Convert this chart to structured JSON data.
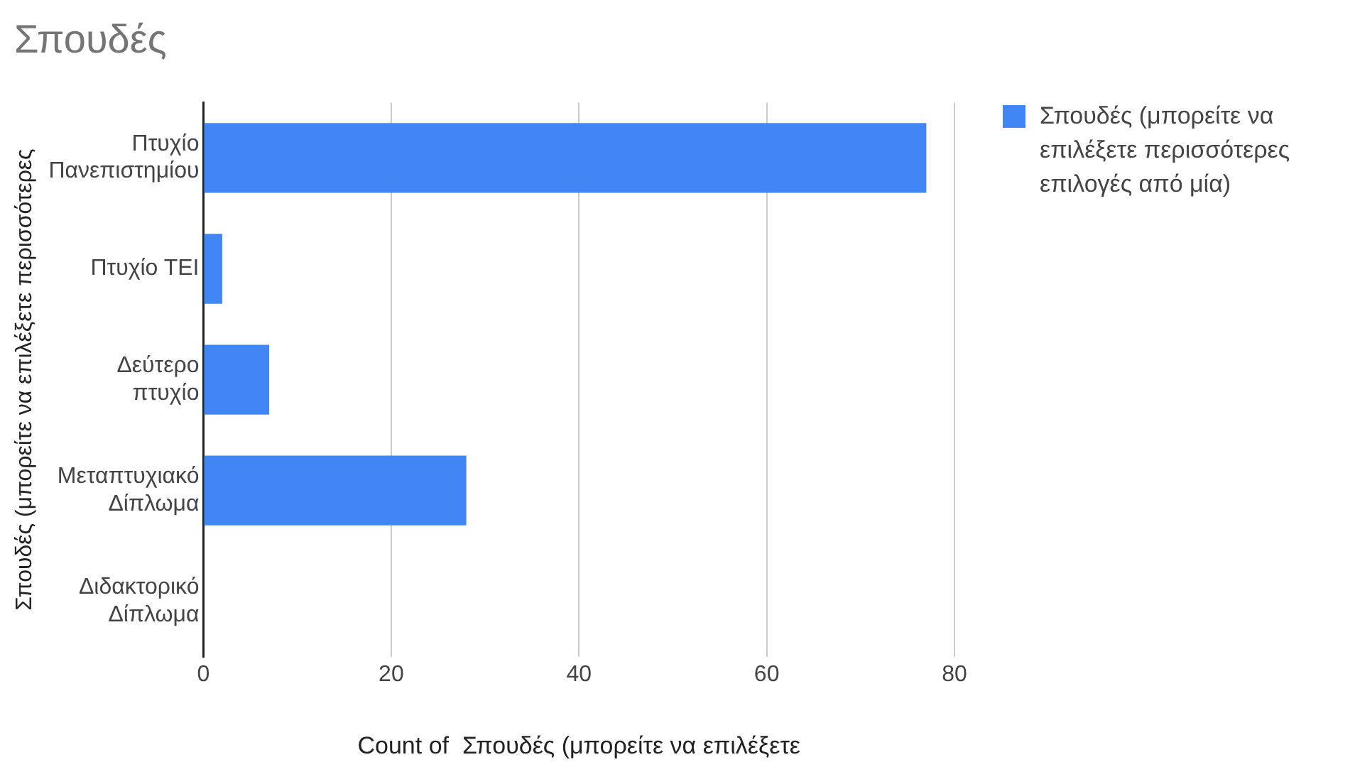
{
  "chart_data": {
    "type": "bar",
    "orientation": "horizontal",
    "title": "Σπουδές",
    "xlabel": "Count of  Σπουδές (μπορείτε να επιλέξετε",
    "ylabel": "Σπουδές (μπορείτε να επιλέξετε περισσότερες",
    "categories": [
      "Πτυχίο Πανεπιστημίου",
      "Πτυχίο ΤΕΙ",
      "Δεύτερο πτυχίο",
      "Μεταπτυχιακό Δίπλωμα",
      "Διδακτορικό Δίπλωμα"
    ],
    "series": [
      {
        "name": "Σπουδές (μπορείτε να επιλέξετε περισσότερες επιλογές από μία)",
        "color": "#4285f4",
        "values": [
          77,
          2,
          7,
          28,
          0
        ]
      }
    ],
    "xlim": [
      0,
      80
    ],
    "xticks": [
      0,
      20,
      40,
      60,
      80
    ],
    "grid": "x",
    "legend": "right"
  }
}
